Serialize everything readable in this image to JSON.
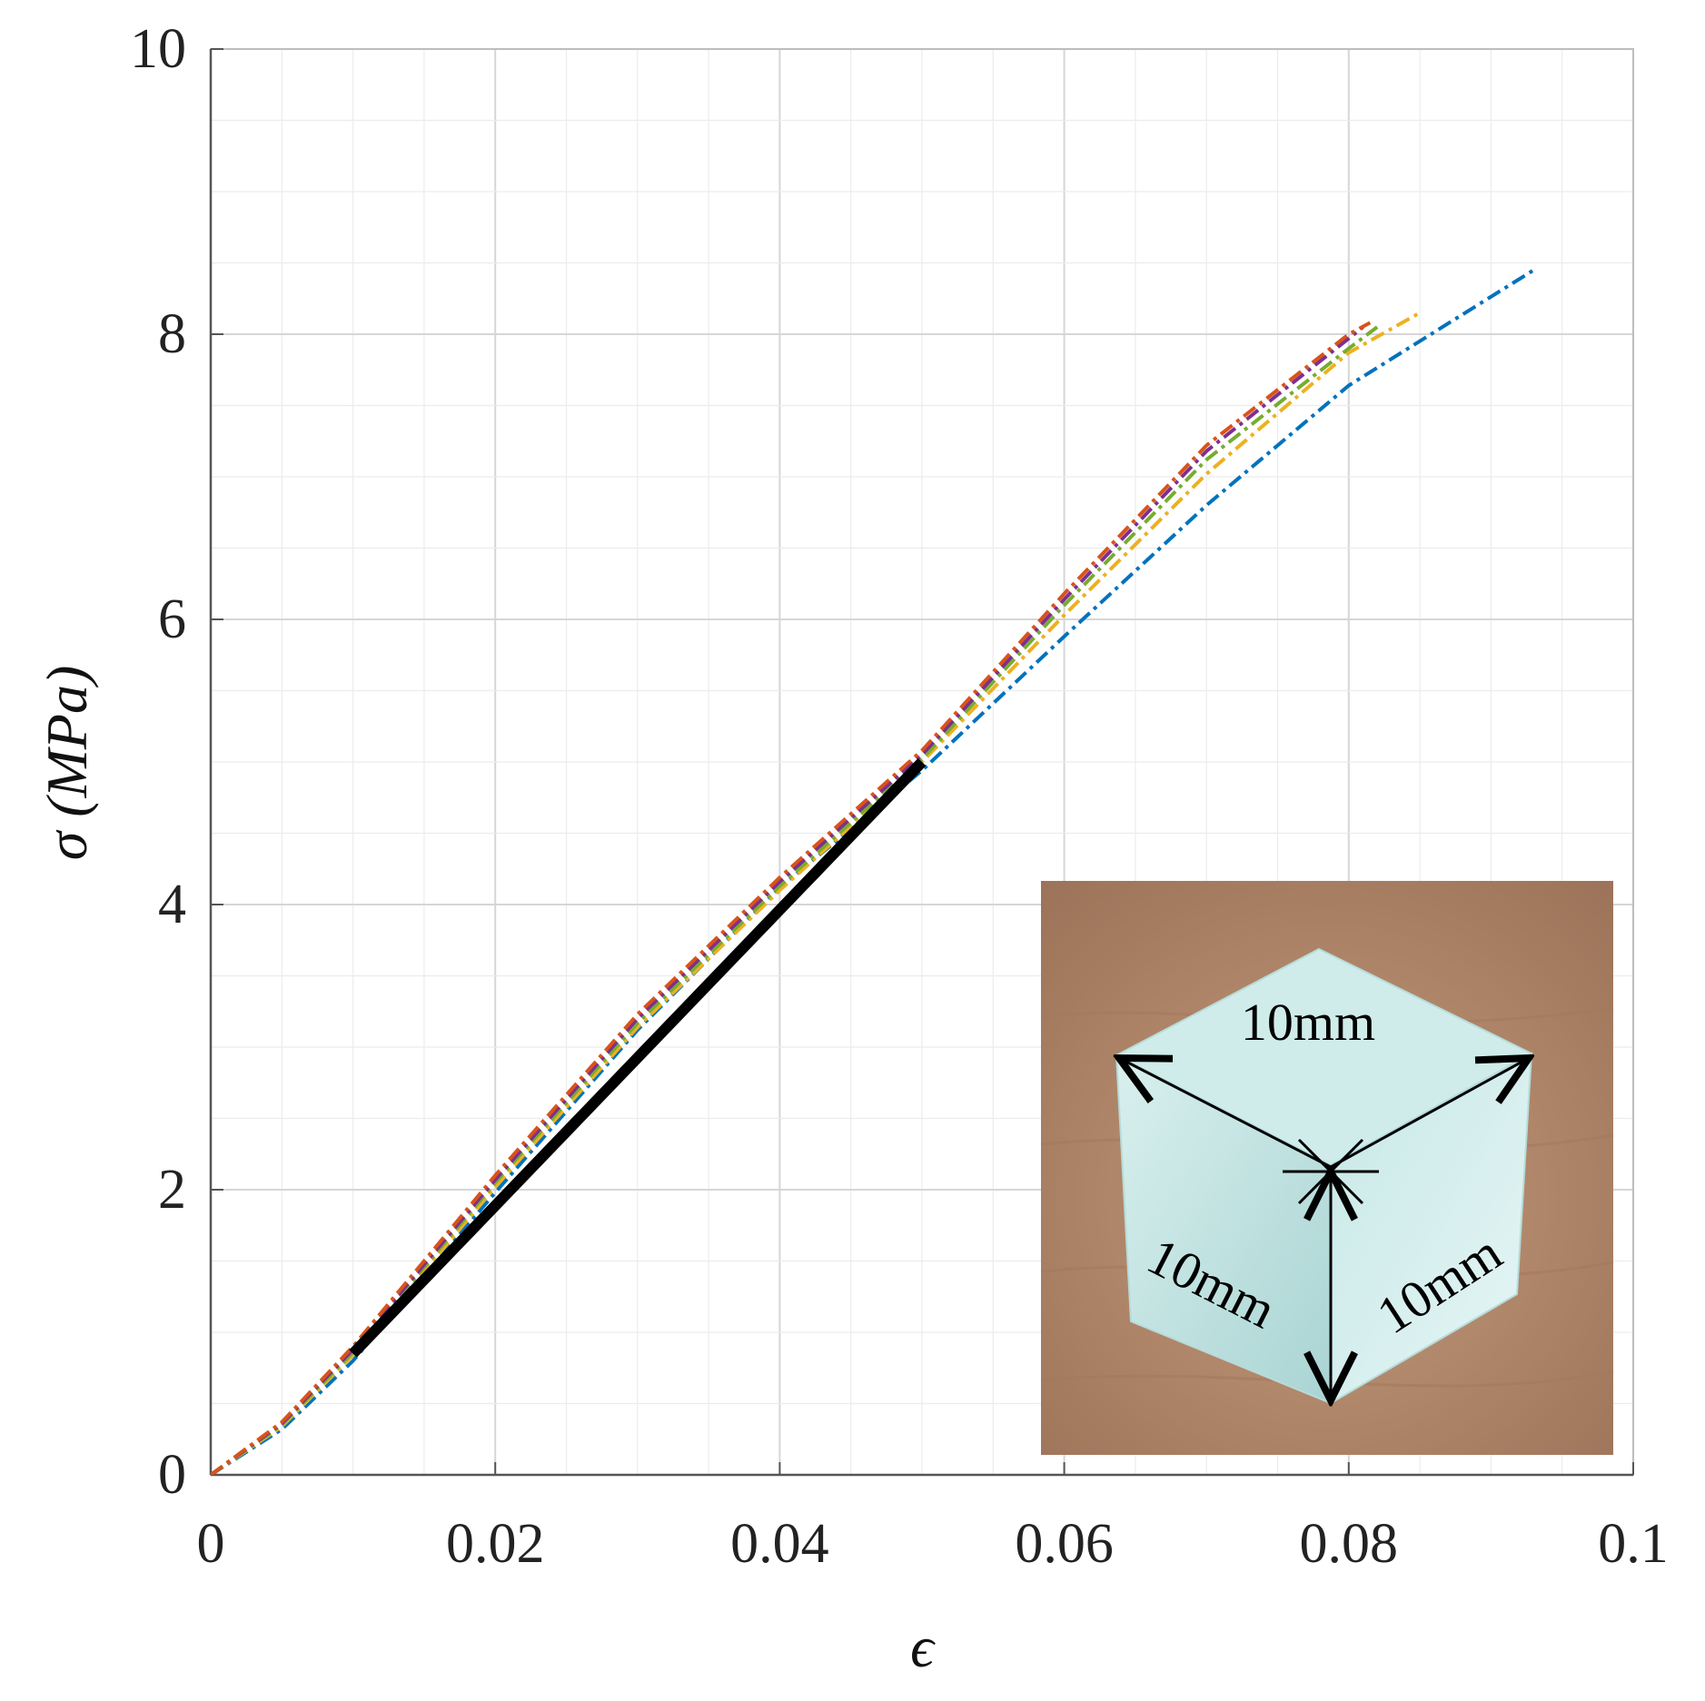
{
  "chart_data": {
    "type": "line",
    "title": "",
    "xlabel": "ϵ",
    "ylabel": "σ (MPa)",
    "xlim": [
      0,
      0.1
    ],
    "ylim": [
      0,
      10
    ],
    "grid": true,
    "x_ticks": [
      0,
      0.02,
      0.04,
      0.06,
      0.08,
      0.1
    ],
    "x_tick_labels": [
      "0",
      "0.02",
      "0.04",
      "0.06",
      "0.08",
      "0.1"
    ],
    "y_ticks": [
      0,
      2,
      4,
      6,
      8,
      10
    ],
    "y_tick_labels": [
      "0",
      "2",
      "4",
      "6",
      "8",
      "10"
    ],
    "series": [
      {
        "color": "#0072BD",
        "style": "dash-dot",
        "x": [
          0,
          0.005,
          0.01,
          0.02,
          0.03,
          0.04,
          0.05,
          0.06,
          0.07,
          0.08,
          0.093
        ],
        "y": [
          0,
          0.32,
          0.8,
          1.98,
          3.12,
          4.12,
          4.94,
          5.88,
          6.8,
          7.64,
          8.45
        ]
      },
      {
        "color": "#EDB120",
        "style": "dash-dot",
        "x": [
          0,
          0.005,
          0.01,
          0.02,
          0.03,
          0.04,
          0.05,
          0.06,
          0.07,
          0.08,
          0.085
        ],
        "y": [
          0,
          0.34,
          0.84,
          2.02,
          3.14,
          4.1,
          5.0,
          6.03,
          7.02,
          7.87,
          8.15
        ]
      },
      {
        "color": "#77AC30",
        "style": "dash-dot",
        "x": [
          0,
          0.005,
          0.01,
          0.02,
          0.03,
          0.04,
          0.05,
          0.06,
          0.07,
          0.08,
          0.082
        ],
        "y": [
          0,
          0.35,
          0.86,
          2.05,
          3.17,
          4.13,
          5.02,
          6.1,
          7.12,
          7.9,
          8.05
        ]
      },
      {
        "color": "#7E2F8E",
        "style": "dash-dot",
        "x": [
          0,
          0.005,
          0.01,
          0.02,
          0.03,
          0.04,
          0.05,
          0.06,
          0.07,
          0.08,
          0.081
        ],
        "y": [
          0,
          0.36,
          0.88,
          2.07,
          3.2,
          4.16,
          5.05,
          6.14,
          7.18,
          7.97,
          8.05
        ]
      },
      {
        "color": "#D95319",
        "style": "dash-dot",
        "x": [
          0,
          0.005,
          0.01,
          0.02,
          0.03,
          0.04,
          0.05,
          0.06,
          0.07,
          0.08,
          0.0815
        ],
        "y": [
          0,
          0.37,
          0.9,
          2.1,
          3.23,
          4.19,
          5.08,
          6.18,
          7.22,
          8.0,
          8.08
        ]
      },
      {
        "color": "#000000",
        "style": "solid-thick",
        "x": [
          0.01,
          0.05
        ],
        "y": [
          0.85,
          5.0
        ]
      }
    ],
    "inset": {
      "type": "photo",
      "labels": [
        "10mm",
        "10mm",
        "10mm"
      ],
      "colors": {
        "wood": "#b58b6e",
        "cube": "#bfe3e2"
      }
    }
  }
}
